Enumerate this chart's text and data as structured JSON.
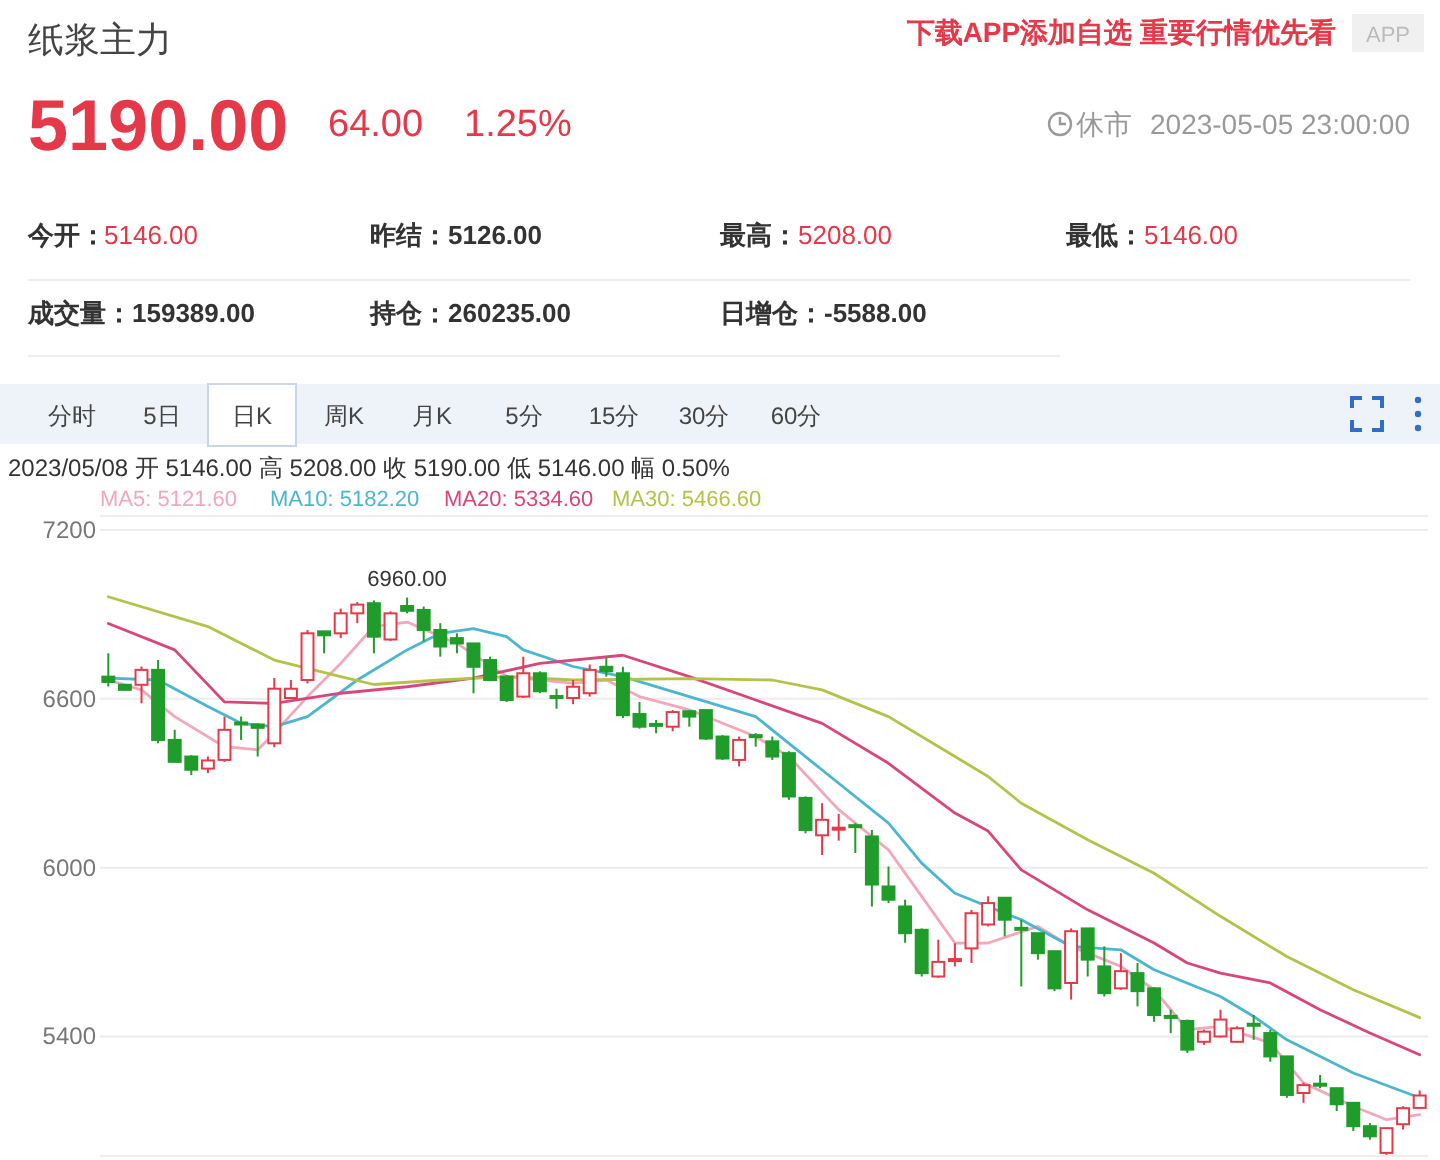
{
  "chart_data": {
    "type": "candlestick",
    "title": "纸浆主力",
    "subtitle": "2023/05/08  开 5146.00  高 5208.00  收 5190.00  低 5146.00  幅 0.50%",
    "annotations": [
      "下载APP添加自选 重要行情优先看",
      "APP",
      "5190.00",
      "64.00",
      "1.25%",
      "休市",
      "2023-05-05 23:00:00",
      "今开：",
      "5146.00",
      "昨结：",
      "5126.00",
      "最高：",
      "5208.00",
      "最低：",
      "5146.00",
      "成交量：",
      "159389.00",
      "持仓：",
      "260235.00",
      "日增仓：",
      "-5588.00",
      "分时",
      "5日",
      "日K",
      "周K",
      "月K",
      "5分",
      "15分",
      "30分",
      "60分",
      {
        "text": "6960.00",
        "y": 6960
      }
    ],
    "categories": [
      null,
      null,
      null,
      null,
      null,
      null,
      null,
      null,
      null,
      null,
      null,
      null,
      null,
      null,
      null,
      null,
      null,
      null,
      null,
      null,
      null,
      null,
      null,
      null,
      null,
      null,
      null,
      null,
      null,
      null,
      null,
      null,
      null,
      null,
      null,
      null,
      null,
      null,
      null,
      null,
      null,
      null,
      null,
      null,
      null,
      null,
      null,
      null,
      null,
      null,
      null,
      null,
      null,
      null,
      null,
      null,
      null,
      null,
      null,
      null,
      null,
      null,
      null,
      null,
      null,
      null,
      null,
      null,
      null,
      null,
      null,
      null,
      null,
      null,
      null,
      null,
      null,
      null,
      null,
      null
    ],
    "ohlc": [
      [
        6679,
        6762,
        6644,
        6660
      ],
      [
        6650,
        6650,
        6630,
        6632
      ],
      [
        6650,
        6715,
        6584,
        6703
      ],
      [
        6703,
        6738,
        6442,
        6454
      ],
      [
        6454,
        6490,
        6376,
        6376
      ],
      [
        6395,
        6400,
        6329,
        6348
      ],
      [
        6352,
        6395,
        6336,
        6381
      ],
      [
        6383,
        6537,
        6376,
        6490
      ],
      [
        6516,
        6537,
        6454,
        6509
      ],
      [
        6509,
        6513,
        6395,
        6497
      ],
      [
        6442,
        6674,
        6428,
        6636
      ],
      [
        6603,
        6667,
        6600,
        6636
      ],
      [
        6667,
        6845,
        6655,
        6833
      ],
      [
        6840,
        6840,
        6762,
        6826
      ],
      [
        6833,
        6921,
        6816,
        6904
      ],
      [
        6904,
        6944,
        6869,
        6935
      ],
      [
        6940,
        6950,
        6762,
        6821
      ],
      [
        6811,
        6911,
        6806,
        6904
      ],
      [
        6930,
        6960,
        6904,
        6913
      ],
      [
        6916,
        6928,
        6804,
        6845
      ],
      [
        6845,
        6869,
        6750,
        6786
      ],
      [
        6816,
        6833,
        6762,
        6797
      ],
      [
        6797,
        6797,
        6620,
        6714
      ],
      [
        6738,
        6750,
        6667,
        6667
      ],
      [
        6679,
        6684,
        6589,
        6596
      ],
      [
        6608,
        6750,
        6603,
        6691
      ],
      [
        6691,
        6698,
        6620,
        6627
      ],
      [
        6610,
        6636,
        6565,
        6605
      ],
      [
        6603,
        6667,
        6581,
        6643
      ],
      [
        6620,
        6722,
        6608,
        6703
      ],
      [
        6714,
        6745,
        6679,
        6698
      ],
      [
        6691,
        6714,
        6532,
        6542
      ],
      [
        6546,
        6589,
        6494,
        6501
      ],
      [
        6511,
        6525,
        6478,
        6506
      ],
      [
        6501,
        6560,
        6485,
        6553
      ],
      [
        6556,
        6560,
        6501,
        6537
      ],
      [
        6560,
        6560,
        6454,
        6459
      ],
      [
        6466,
        6471,
        6383,
        6388
      ],
      [
        6383,
        6466,
        6360,
        6454
      ],
      [
        6471,
        6478,
        6430,
        6464
      ],
      [
        6449,
        6466,
        6383,
        6395
      ],
      [
        6407,
        6414,
        6241,
        6253
      ],
      [
        6248,
        6253,
        6122,
        6134
      ],
      [
        6115,
        6229,
        6045,
        6170
      ],
      [
        6139,
        6191,
        6096,
        6142
      ],
      [
        6151,
        6158,
        6052,
        6146
      ],
      [
        6111,
        6134,
        5862,
        5940
      ],
      [
        5933,
        6004,
        5874,
        5886
      ],
      [
        5862,
        5886,
        5733,
        5767
      ],
      [
        5779,
        5784,
        5613,
        5625
      ],
      [
        5613,
        5744,
        5609,
        5665
      ],
      [
        5672,
        5731,
        5649,
        5675
      ],
      [
        5713,
        5850,
        5661,
        5838
      ],
      [
        5798,
        5898,
        5791,
        5874
      ],
      [
        5893,
        5893,
        5756,
        5815
      ],
      [
        5786,
        5815,
        5578,
        5782
      ],
      [
        5767,
        5767,
        5673,
        5696
      ],
      [
        5703,
        5703,
        5561,
        5571
      ],
      [
        5590,
        5784,
        5531,
        5774
      ],
      [
        5784,
        5784,
        5613,
        5673
      ],
      [
        5649,
        5720,
        5542,
        5554
      ],
      [
        5571,
        5696,
        5566,
        5632
      ],
      [
        5625,
        5661,
        5507,
        5561
      ],
      [
        5571,
        5575,
        5452,
        5476
      ],
      [
        5473,
        5495,
        5412,
        5469
      ],
      [
        5455,
        5460,
        5341,
        5353
      ],
      [
        5381,
        5424,
        5370,
        5417
      ],
      [
        5400,
        5495,
        5396,
        5460
      ],
      [
        5381,
        5436,
        5377,
        5429
      ],
      [
        5445,
        5476,
        5388,
        5441
      ],
      [
        5412,
        5424,
        5310,
        5329
      ],
      [
        5329,
        5329,
        5182,
        5192
      ],
      [
        5199,
        5235,
        5164,
        5227
      ],
      [
        5232,
        5263,
        5216,
        5228
      ],
      [
        5216,
        5216,
        5135,
        5159
      ],
      [
        5164,
        5164,
        5064,
        5081
      ],
      [
        5081,
        5092,
        5033,
        5045
      ],
      [
        4986,
        5074,
        4979,
        5074
      ],
      [
        5088,
        5152,
        5069,
        5145
      ],
      [
        5146,
        5208,
        5146,
        5190
      ]
    ],
    "series": [
      {
        "name": "MA5: 5121.60",
        "color": "#f2a7bb",
        "type": "line",
        "values": [
          6667,
          null,
          6632,
          null,
          6537,
          null,
          null,
          6430,
          null,
          6419,
          6478,
          null,
          6608,
          null,
          6726,
          null,
          6857,
          null,
          6873,
          null,
          null,
          6797,
          null,
          null,
          6680,
          null,
          null,
          null,
          6655,
          null,
          6667,
          null,
          6608,
          null,
          null,
          6561,
          null,
          null,
          null,
          6466,
          null,
          6395,
          null,
          null,
          6206,
          null,
          null,
          6063,
          null,
          5898,
          null,
          5732,
          null,
          5732,
          null,
          null,
          5791,
          null,
          5720,
          null,
          null,
          5649,
          null,
          5566,
          null,
          5424,
          null,
          5436,
          null,
          null,
          5377,
          null,
          5235,
          null,
          null,
          5152,
          null,
          5104,
          null,
          5122
        ]
      },
      {
        "name": "MA10: 5182.20",
        "color": "#4cb6d0",
        "type": "line",
        "values": [
          6674,
          null,
          null,
          6667,
          null,
          null,
          6573,
          null,
          6513,
          null,
          6501,
          null,
          6537,
          null,
          null,
          6667,
          null,
          null,
          6774,
          null,
          6833,
          null,
          6850,
          null,
          6821,
          6774,
          null,
          null,
          6715,
          null,
          null,
          6679,
          null,
          null,
          null,
          6608,
          null,
          null,
          null,
          6537,
          null,
          6442,
          null,
          null,
          6300,
          null,
          null,
          6158,
          null,
          6016,
          null,
          5909,
          null,
          null,
          null,
          5815,
          null,
          null,
          5720,
          null,
          null,
          5708,
          null,
          5637,
          null,
          null,
          null,
          5542,
          null,
          5471,
          null,
          5388,
          null,
          null,
          null,
          5270,
          null,
          null,
          null,
          5182
        ]
      },
      {
        "name": "MA20: 5334.60",
        "color": "#d9467c",
        "type": "line",
        "values": [
          6868,
          null,
          null,
          null,
          6774,
          null,
          null,
          6589,
          null,
          null,
          6584,
          null,
          null,
          null,
          6620,
          null,
          null,
          null,
          6643,
          null,
          null,
          null,
          6674,
          null,
          null,
          null,
          6726,
          null,
          null,
          null,
          null,
          6755,
          null,
          null,
          null,
          6679,
          null,
          null,
          null,
          6596,
          null,
          null,
          null,
          6513,
          null,
          null,
          null,
          6371,
          null,
          null,
          null,
          6194,
          null,
          6130,
          null,
          5992,
          null,
          null,
          null,
          5850,
          null,
          null,
          null,
          5732,
          null,
          5661,
          null,
          5625,
          null,
          null,
          5590,
          null,
          null,
          5495,
          null,
          null,
          5412,
          null,
          null,
          5335
        ]
      },
      {
        "name": "MA30: 5466.60",
        "color": "#b4c24a",
        "type": "line",
        "values": [
          6963,
          null,
          null,
          null,
          null,
          null,
          6857,
          null,
          null,
          null,
          6738,
          null,
          null,
          null,
          6679,
          null,
          6651,
          null,
          null,
          null,
          6667,
          null,
          null,
          null,
          6679,
          null,
          null,
          null,
          6667,
          null,
          null,
          null,
          null,
          null,
          null,
          6672,
          null,
          null,
          null,
          null,
          6667,
          null,
          null,
          6632,
          null,
          null,
          null,
          6537,
          null,
          null,
          null,
          6395,
          null,
          6324,
          null,
          6229,
          null,
          null,
          null,
          6099,
          null,
          null,
          null,
          5980,
          null,
          null,
          null,
          5827,
          null,
          null,
          null,
          5684,
          null,
          null,
          null,
          5566,
          null,
          null,
          null,
          5467
        ]
      }
    ],
    "ylim": [
      4975,
      7250
    ],
    "yticks": [
      5400,
      6000,
      6600,
      7200
    ],
    "grid": "y",
    "legend": "top left"
  }
}
